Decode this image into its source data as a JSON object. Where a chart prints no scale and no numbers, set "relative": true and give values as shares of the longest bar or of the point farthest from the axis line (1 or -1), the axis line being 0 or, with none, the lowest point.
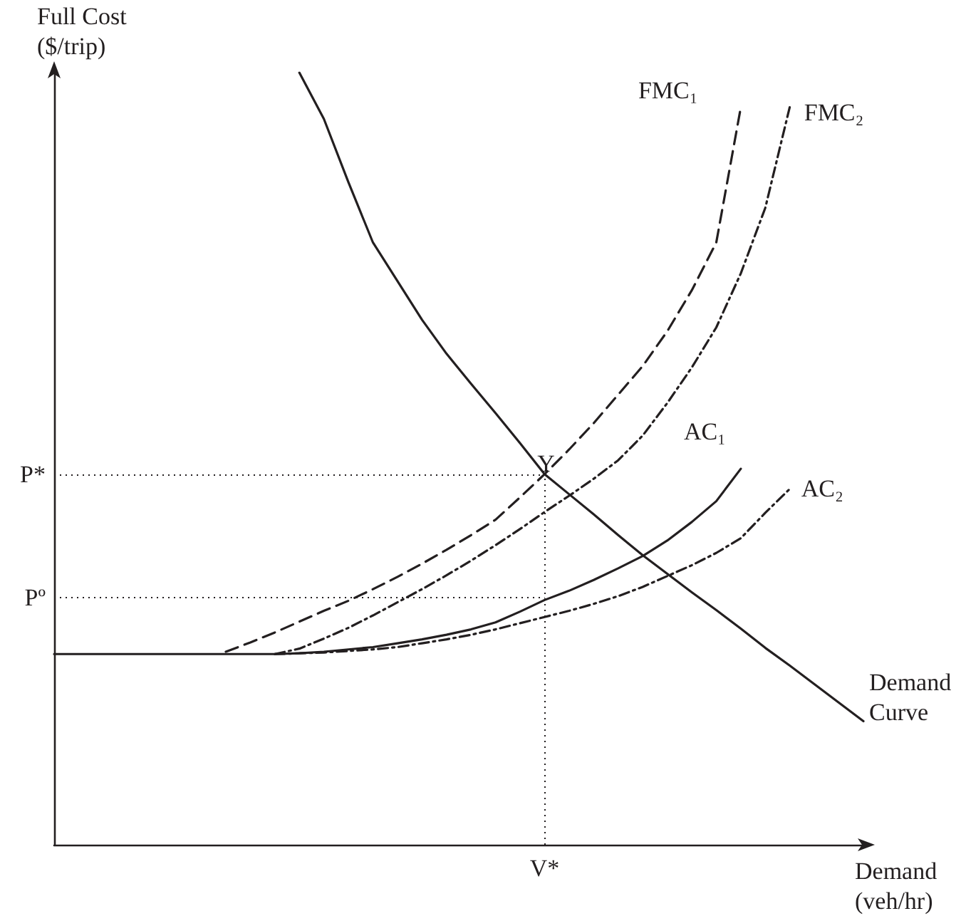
{
  "chart_data": {
    "type": "line",
    "relative": true,
    "xlabel": "Demand\n(veh/hr)",
    "ylabel": "Full Cost\n($/trip)",
    "grid": false,
    "marker": "none",
    "categories": [
      null,
      null,
      null,
      null,
      null,
      null,
      null,
      null,
      null,
      null,
      null,
      null,
      null,
      null,
      null,
      null,
      null,
      null,
      null,
      null,
      null,
      null,
      null,
      null,
      null,
      null,
      null,
      null,
      null,
      null,
      null,
      null,
      null,
      null
    ],
    "series": [
      {
        "name": "Demand Curve",
        "color": "#231f20",
        "line_style": "solid",
        "values": [
          null,
          null,
          null,
          null,
          null,
          null,
          null,
          null,
          null,
          null,
          1.0,
          0.94,
          0.858,
          0.78,
          0.73,
          0.68,
          0.636,
          0.597,
          0.559,
          0.52,
          0.48,
          0.454,
          0.428,
          0.401,
          0.375,
          0.351,
          0.327,
          0.304,
          0.28,
          0.255,
          0.232,
          0.208,
          0.184,
          0.16
        ]
      },
      {
        "name": "FMC₁",
        "color": "#231f20",
        "line_style": "dashed",
        "values": [
          null,
          null,
          null,
          null,
          null,
          null,
          null,
          0.25,
          0.262,
          0.275,
          0.289,
          0.303,
          0.316,
          0.331,
          0.347,
          0.364,
          0.382,
          0.401,
          0.421,
          0.45,
          0.48,
          0.512,
          0.546,
          0.583,
          0.62,
          0.665,
          0.718,
          0.78,
          0.955,
          null,
          null,
          null,
          null,
          null
        ]
      },
      {
        "name": "FMC₂",
        "color": "#231f20",
        "line_style": "dotted",
        "values": [
          null,
          null,
          null,
          null,
          null,
          null,
          null,
          null,
          null,
          0.247,
          0.254,
          0.267,
          0.281,
          0.297,
          0.314,
          0.331,
          0.349,
          0.368,
          0.388,
          0.409,
          0.431,
          0.452,
          0.474,
          0.498,
          0.53,
          0.572,
          0.618,
          0.67,
          0.74,
          0.825,
          0.956,
          null,
          null,
          null
        ]
      },
      {
        "name": "AC₁",
        "color": "#231f20",
        "line_style": "solid",
        "values": [
          0.247,
          0.247,
          0.247,
          0.247,
          0.247,
          0.247,
          0.247,
          0.247,
          0.247,
          0.247,
          0.248,
          0.25,
          0.253,
          0.256,
          0.261,
          0.266,
          0.272,
          0.279,
          0.288,
          0.302,
          0.317,
          0.329,
          0.343,
          0.358,
          0.374,
          0.394,
          0.418,
          0.445,
          0.487,
          null,
          null,
          null,
          null,
          null
        ]
      },
      {
        "name": "AC₂",
        "color": "#231f20",
        "line_style": "dotted",
        "values": [
          null,
          null,
          null,
          null,
          null,
          null,
          null,
          null,
          null,
          0.247,
          0.248,
          0.249,
          0.251,
          0.253,
          0.256,
          0.261,
          0.266,
          0.272,
          0.279,
          0.287,
          0.295,
          0.303,
          0.312,
          0.322,
          0.334,
          0.348,
          0.362,
          0.378,
          0.397,
          0.43,
          0.461,
          null,
          null,
          null
        ]
      }
    ],
    "ref_lines": [
      {
        "axis": "y",
        "value": 0.48,
        "label": "P*",
        "line_style": "dotted"
      },
      {
        "axis": "y",
        "value": 0.32,
        "label": "Pº",
        "line_style": "dotted"
      }
    ],
    "annotations": [
      {
        "text": "Y",
        "y": 0.48
      },
      "V*"
    ]
  }
}
